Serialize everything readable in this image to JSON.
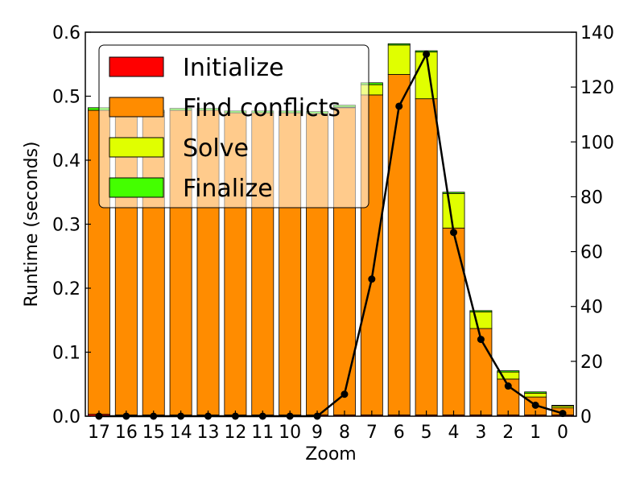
{
  "chart_data": {
    "type": "bar",
    "title": "",
    "xlabel": "Zoom",
    "ylabel": "Runtime (seconds)",
    "ylim": [
      0,
      0.6
    ],
    "y2lim": [
      0,
      140
    ],
    "yticks": [
      "0.0",
      "0.1",
      "0.2",
      "0.3",
      "0.4",
      "0.5",
      "0.6"
    ],
    "y2ticks": [
      "0",
      "20",
      "40",
      "60",
      "80",
      "100",
      "120",
      "140"
    ],
    "categories": [
      "17",
      "16",
      "15",
      "14",
      "13",
      "12",
      "11",
      "10",
      "9",
      "8",
      "7",
      "6",
      "5",
      "4",
      "3",
      "2",
      "1",
      "0"
    ],
    "grid": false,
    "legend_position": "top-left",
    "stacked": true,
    "series": [
      {
        "name": "Initialize",
        "color": "#ff0000",
        "values": [
          0.003,
          0.002,
          0.002,
          0.002,
          0.002,
          0.002,
          0.002,
          0.002,
          0.002,
          0.002,
          0.002,
          0.002,
          0.002,
          0.002,
          0.002,
          0.002,
          0.002,
          0.002
        ]
      },
      {
        "name": "Find conflicts",
        "color": "#ff8c00",
        "values": [
          0.475,
          0.473,
          0.473,
          0.476,
          0.476,
          0.472,
          0.472,
          0.472,
          0.471,
          0.48,
          0.5,
          0.532,
          0.494,
          0.292,
          0.135,
          0.056,
          0.028,
          0.011
        ]
      },
      {
        "name": "Solve",
        "color": "#e0ff00",
        "values": [
          0.0,
          0.0,
          0.0,
          0.0,
          0.0,
          0.0,
          0.0,
          0.0,
          0.0,
          0.001,
          0.016,
          0.046,
          0.073,
          0.054,
          0.026,
          0.011,
          0.006,
          0.003
        ]
      },
      {
        "name": "Finalize",
        "color": "#44ff00",
        "values": [
          0.004,
          0.003,
          0.003,
          0.003,
          0.003,
          0.003,
          0.003,
          0.003,
          0.003,
          0.003,
          0.003,
          0.002,
          0.002,
          0.002,
          0.002,
          0.002,
          0.002,
          0.001
        ]
      }
    ],
    "line_series": {
      "axis": "right",
      "color": "#000000",
      "values": [
        0,
        0,
        0,
        0,
        0,
        0,
        0,
        0,
        0,
        8,
        50,
        113,
        132,
        67,
        28,
        11,
        4,
        1
      ]
    }
  }
}
